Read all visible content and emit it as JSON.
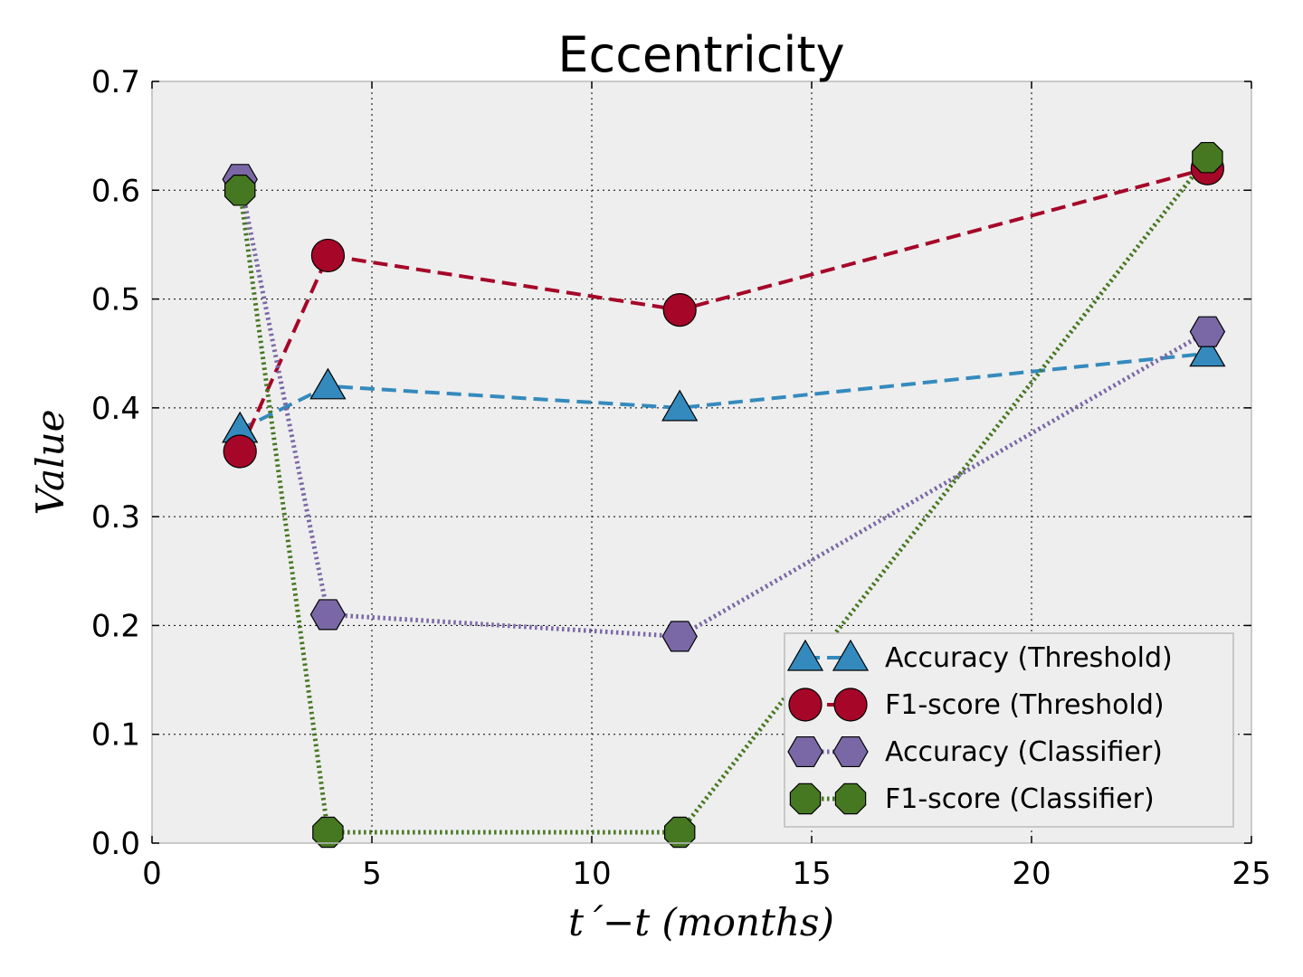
{
  "chart_data": {
    "type": "line",
    "title": "Eccentricity",
    "xlabel": "t´−t (months)",
    "ylabel": "Value",
    "xlim": [
      0,
      25
    ],
    "ylim": [
      0,
      0.7
    ],
    "xticks": [
      0,
      5,
      10,
      15,
      20,
      25
    ],
    "yticks": [
      0.0,
      0.1,
      0.2,
      0.3,
      0.4,
      0.5,
      0.6,
      0.7
    ],
    "xtick_labels": [
      "0",
      "5",
      "10",
      "15",
      "20",
      "25"
    ],
    "ytick_labels": [
      "0.0",
      "0.1",
      "0.2",
      "0.3",
      "0.4",
      "0.5",
      "0.6",
      "0.7"
    ],
    "grid": true,
    "legend_position": "lower-right",
    "x": [
      2,
      4,
      12,
      24
    ],
    "series": [
      {
        "name": "Accuracy (Threshold)",
        "values": [
          0.38,
          0.42,
          0.4,
          0.45
        ],
        "color": "#348ABD",
        "marker": "triangle",
        "linestyle": "dashed"
      },
      {
        "name": "F1-score (Threshold)",
        "values": [
          0.36,
          0.54,
          0.49,
          0.62
        ],
        "color": "#A60628",
        "marker": "circle",
        "linestyle": "dashed"
      },
      {
        "name": "Accuracy (Classifier)",
        "values": [
          0.61,
          0.21,
          0.19,
          0.47
        ],
        "color": "#7A68A6",
        "marker": "hexagon",
        "linestyle": "dotted"
      },
      {
        "name": "F1-score (Classifier)",
        "values": [
          0.6,
          0.01,
          0.01,
          0.63
        ],
        "color": "#467821",
        "marker": "octagon",
        "linestyle": "dotted"
      }
    ]
  }
}
